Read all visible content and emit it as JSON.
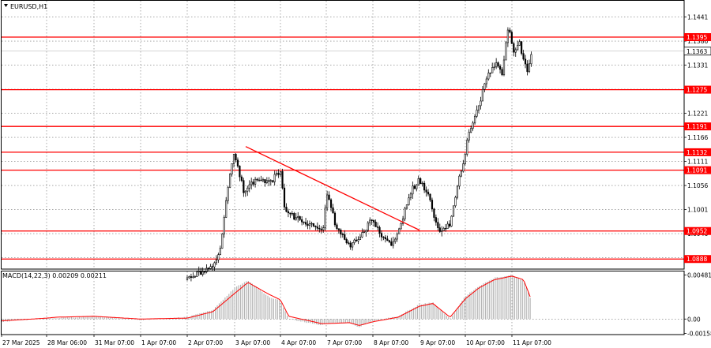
{
  "window": {
    "title": "EURUSD,H1"
  },
  "colors": {
    "background": "#ffffff",
    "candle": "#000000",
    "level": "#ff0000",
    "trendline": "#ff0000",
    "macd_hist": "#b4b4b4",
    "macd_signal": "#ff0000",
    "grid": "#000000"
  },
  "chart_data": [
    {
      "type": "candlestick",
      "symbol": "EURUSD",
      "timeframe": "H1",
      "title": "EURUSD,H1",
      "grid": true,
      "ylim": [
        1.0865,
        1.1478
      ],
      "y_ticks": [
        "1.1441",
        "1.1386",
        "1.1331",
        "1.1276",
        "1.1221",
        "1.1166",
        "1.1111",
        "1.1056",
        "1.1001",
        "1.0946",
        "1.0891"
      ],
      "x_ticks": [
        "27 Mar 2025",
        "28 Mar 06:00",
        "31 Mar 07:00",
        "1 Apr 07:00",
        "2 Apr 07:00",
        "3 Apr 07:00",
        "4 Apr 07:00",
        "7 Apr 07:00",
        "8 Apr 07:00",
        "9 Apr 07:00",
        "10 Apr 07:00",
        "11 Apr 07:00"
      ],
      "current_price": "1.1363",
      "levels": [
        "1.1395",
        "1.1275",
        "1.1191",
        "1.1132",
        "1.1091",
        "1.0952",
        "1.0888"
      ],
      "trendline": {
        "from": [
          "3 Apr 07:00",
          1.1145
        ],
        "to": [
          "9 Apr 07:00",
          1.0954
        ]
      },
      "close_path": [
        [
          "2 Apr 07:00",
          1.084
        ],
        [
          "2 Apr 21:00",
          1.088
        ],
        [
          "3 Apr 00:00",
          1.092
        ],
        [
          "3 Apr 03:00",
          1.104
        ],
        [
          "3 Apr 07:00",
          1.113
        ],
        [
          "3 Apr 12:00",
          1.104
        ],
        [
          "3 Apr 18:00",
          1.107
        ],
        [
          "4 Apr 01:00",
          1.106
        ],
        [
          "4 Apr 07:00",
          1.109
        ],
        [
          "4 Apr 14:00",
          1.099
        ],
        [
          "4 Apr 20:00",
          1.099
        ],
        [
          "7 Apr 00:00",
          1.095
        ],
        [
          "7 Apr 03:00",
          1.096
        ],
        [
          "7 Apr 07:00",
          1.104
        ],
        [
          "7 Apr 13:00",
          1.095
        ],
        [
          "7 Apr 19:00",
          1.092
        ],
        [
          "8 Apr 00:00",
          1.094
        ],
        [
          "8 Apr 07:00",
          1.098
        ],
        [
          "8 Apr 11:00",
          1.094
        ],
        [
          "8 Apr 16:00",
          1.092
        ],
        [
          "8 Apr 21:00",
          1.096
        ],
        [
          "9 Apr 02:00",
          1.104
        ],
        [
          "9 Apr 07:00",
          1.107
        ],
        [
          "9 Apr 12:00",
          1.103
        ],
        [
          "9 Apr 17:00",
          1.095
        ],
        [
          "9 Apr 23:00",
          1.097
        ],
        [
          "10 Apr 03:00",
          1.106
        ],
        [
          "10 Apr 07:00",
          1.113
        ],
        [
          "10 Apr 09:00",
          1.118
        ],
        [
          "10 Apr 13:00",
          1.123
        ],
        [
          "10 Apr 19:00",
          1.131
        ],
        [
          "10 Apr 23:00",
          1.134
        ],
        [
          "11 Apr 02:00",
          1.131
        ],
        [
          "11 Apr 05:00",
          1.142
        ],
        [
          "11 Apr 08:00",
          1.136
        ],
        [
          "11 Apr 11:00",
          1.138
        ],
        [
          "11 Apr 15:00",
          1.131
        ],
        [
          "11 Apr 17:00",
          1.1363
        ]
      ]
    },
    {
      "type": "bar",
      "title": "MACD(14,22,3) 0.00209 0.00211",
      "ylim": [
        -0.0017,
        0.0052
      ],
      "y_ticks": [
        "0.00481",
        "0.00",
        "-0.00158"
      ],
      "series": [
        {
          "name": "MACD",
          "style": "histogram",
          "path": [
            [
              "27 Mar 2025",
              -0.0003
            ],
            [
              "28 Mar 06:00",
              0.0001
            ],
            [
              "28 Mar 20:00",
              0.0001
            ],
            [
              "31 Mar 07:00",
              0.0003
            ],
            [
              "1 Apr 07:00",
              -0.0001
            ],
            [
              "2 Apr 07:00",
              0.0002
            ],
            [
              "2 Apr 20:00",
              0.001
            ],
            [
              "3 Apr 07:00",
              0.0034
            ],
            [
              "3 Apr 14:00",
              0.0042
            ],
            [
              "4 Apr 01:00",
              0.0024
            ],
            [
              "4 Apr 07:00",
              0.002
            ],
            [
              "4 Apr 20:00",
              0.0
            ],
            [
              "7 Apr 00:00",
              -0.0007
            ],
            [
              "7 Apr 07:00",
              -0.0005
            ],
            [
              "7 Apr 19:00",
              -0.0004
            ],
            [
              "8 Apr 00:00",
              -0.0009
            ],
            [
              "8 Apr 07:00",
              -0.0002
            ],
            [
              "8 Apr 20:00",
              0.0003
            ],
            [
              "9 Apr 07:00",
              0.0016
            ],
            [
              "9 Apr 14:00",
              0.0018
            ],
            [
              "9 Apr 23:00",
              0.0
            ],
            [
              "10 Apr 07:00",
              0.0025
            ],
            [
              "10 Apr 14:00",
              0.0036
            ],
            [
              "10 Apr 22:00",
              0.0045
            ],
            [
              "11 Apr 07:00",
              0.0048
            ],
            [
              "11 Apr 13:00",
              0.0042
            ],
            [
              "11 Apr 17:00",
              0.002
            ]
          ]
        },
        {
          "name": "Signal",
          "style": "line",
          "path": [
            [
              "27 Mar 2025",
              -0.0002
            ],
            [
              "28 Mar 06:00",
              0.0001
            ],
            [
              "28 Mar 20:00",
              0.0002
            ],
            [
              "31 Mar 07:00",
              0.0003
            ],
            [
              "1 Apr 07:00",
              0.0
            ],
            [
              "2 Apr 07:00",
              0.0001
            ],
            [
              "2 Apr 20:00",
              0.0008
            ],
            [
              "3 Apr 07:00",
              0.0028
            ],
            [
              "3 Apr 14:00",
              0.004
            ],
            [
              "4 Apr 01:00",
              0.0027
            ],
            [
              "4 Apr 07:00",
              0.0021
            ],
            [
              "4 Apr 20:00",
              0.0003
            ],
            [
              "7 Apr 00:00",
              -0.0005
            ],
            [
              "7 Apr 07:00",
              -0.0005
            ],
            [
              "7 Apr 19:00",
              -0.0004
            ],
            [
              "8 Apr 00:00",
              -0.0007
            ],
            [
              "8 Apr 07:00",
              -0.0003
            ],
            [
              "8 Apr 20:00",
              0.0002
            ],
            [
              "9 Apr 07:00",
              0.0014
            ],
            [
              "9 Apr 14:00",
              0.0017
            ],
            [
              "9 Apr 23:00",
              0.0002
            ],
            [
              "10 Apr 07:00",
              0.0022
            ],
            [
              "10 Apr 14:00",
              0.0034
            ],
            [
              "10 Apr 22:00",
              0.0043
            ],
            [
              "11 Apr 07:00",
              0.0047
            ],
            [
              "11 Apr 13:00",
              0.0043
            ],
            [
              "11 Apr 17:00",
              0.0021
            ]
          ]
        }
      ]
    }
  ]
}
